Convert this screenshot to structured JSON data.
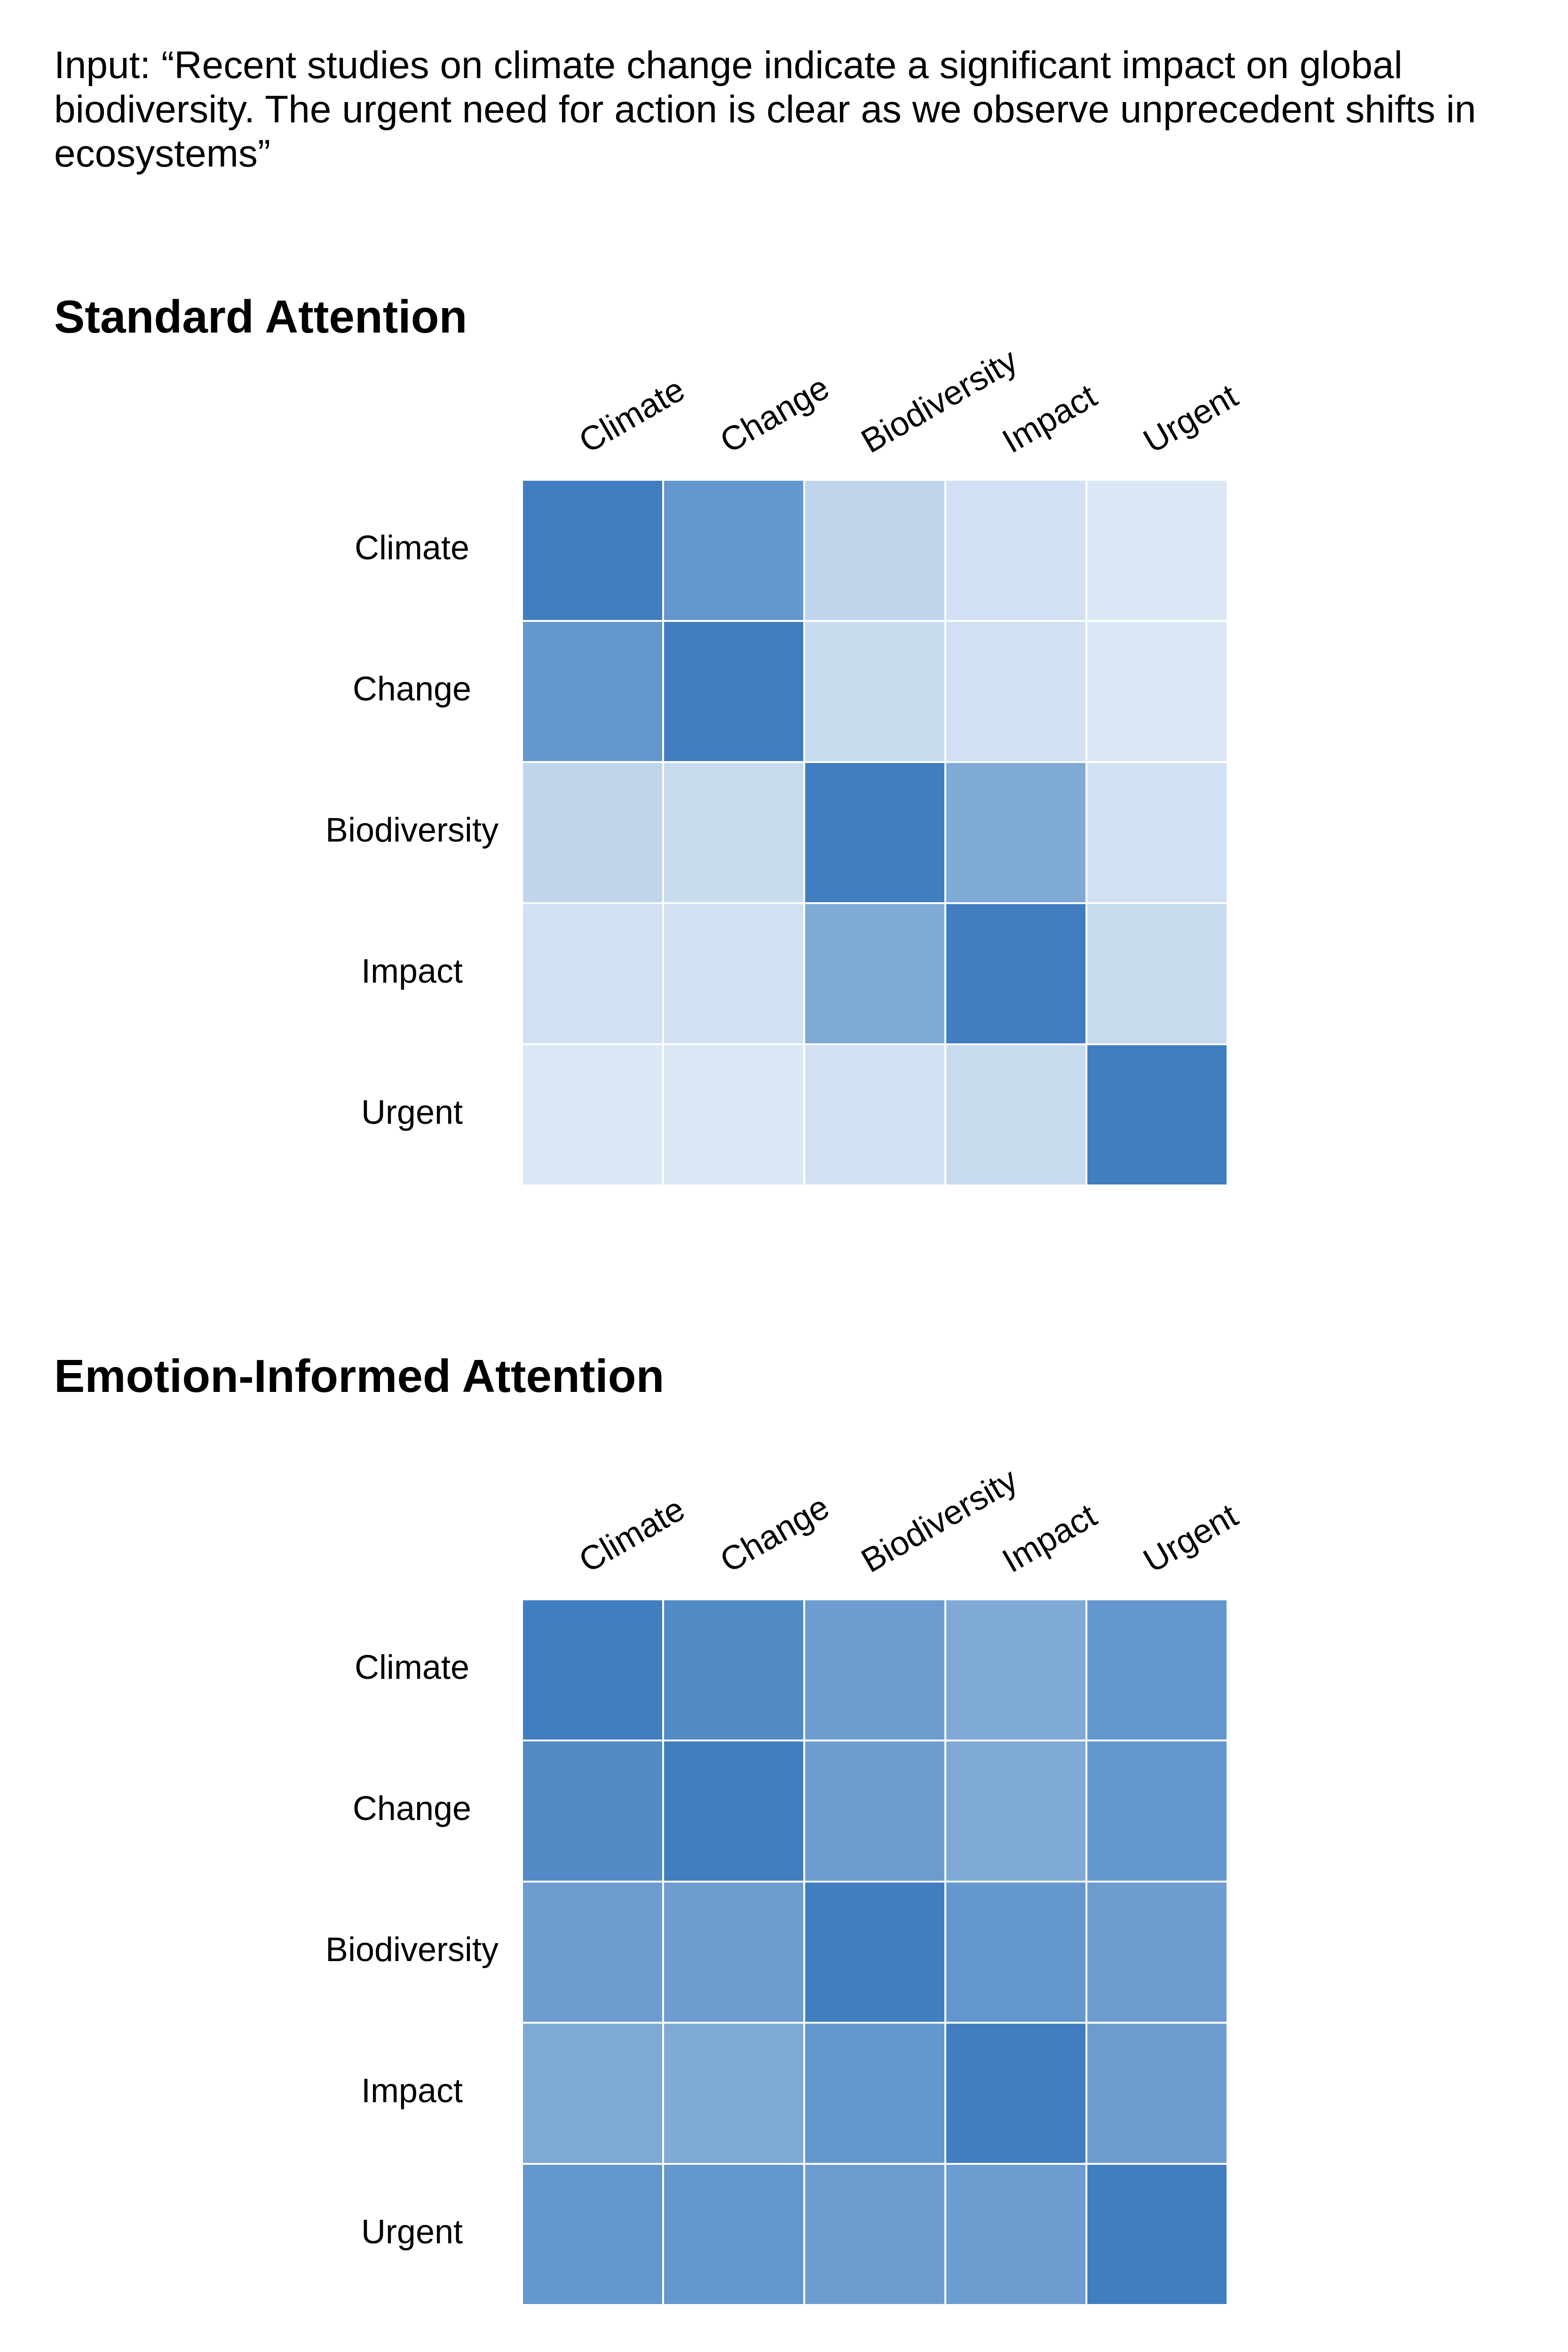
{
  "input_text": "Input: “Recent studies on climate change indicate a significant impact on global biodiversity. The urgent need for action is clear as we observe unprecedent shifts in ecosystems”",
  "chart_data": [
    {
      "type": "heatmap",
      "title": "Standard Attention",
      "x_labels": [
        "Climate",
        "Change",
        "Biodiversity",
        "Impact",
        "Urgent"
      ],
      "y_labels": [
        "Climate",
        "Change",
        "Biodiversity",
        "Impact",
        "Urgent"
      ],
      "values": [
        [
          0.95,
          0.75,
          0.25,
          0.15,
          0.1
        ],
        [
          0.75,
          0.95,
          0.2,
          0.15,
          0.1
        ],
        [
          0.25,
          0.2,
          0.95,
          0.6,
          0.15
        ],
        [
          0.15,
          0.15,
          0.6,
          0.95,
          0.2
        ],
        [
          0.1,
          0.1,
          0.15,
          0.2,
          0.95
        ]
      ],
      "colormap": [
        "#ecf4fc",
        "#3778bd"
      ],
      "vmin": 0.0,
      "vmax": 1.0
    },
    {
      "type": "heatmap",
      "title": "Emotion-Informed Attention",
      "x_labels": [
        "Climate",
        "Change",
        "Biodiversity",
        "Impact",
        "Urgent"
      ],
      "y_labels": [
        "Climate",
        "Change",
        "Biodiversity",
        "Impact",
        "Urgent"
      ],
      "values": [
        [
          0.95,
          0.85,
          0.7,
          0.6,
          0.75
        ],
        [
          0.85,
          0.95,
          0.7,
          0.6,
          0.75
        ],
        [
          0.7,
          0.7,
          0.95,
          0.75,
          0.7
        ],
        [
          0.6,
          0.6,
          0.75,
          0.95,
          0.7
        ],
        [
          0.75,
          0.75,
          0.7,
          0.7,
          0.95
        ]
      ],
      "colormap": [
        "#ecf4fc",
        "#3778bd"
      ],
      "vmin": 0.0,
      "vmax": 1.0
    }
  ]
}
